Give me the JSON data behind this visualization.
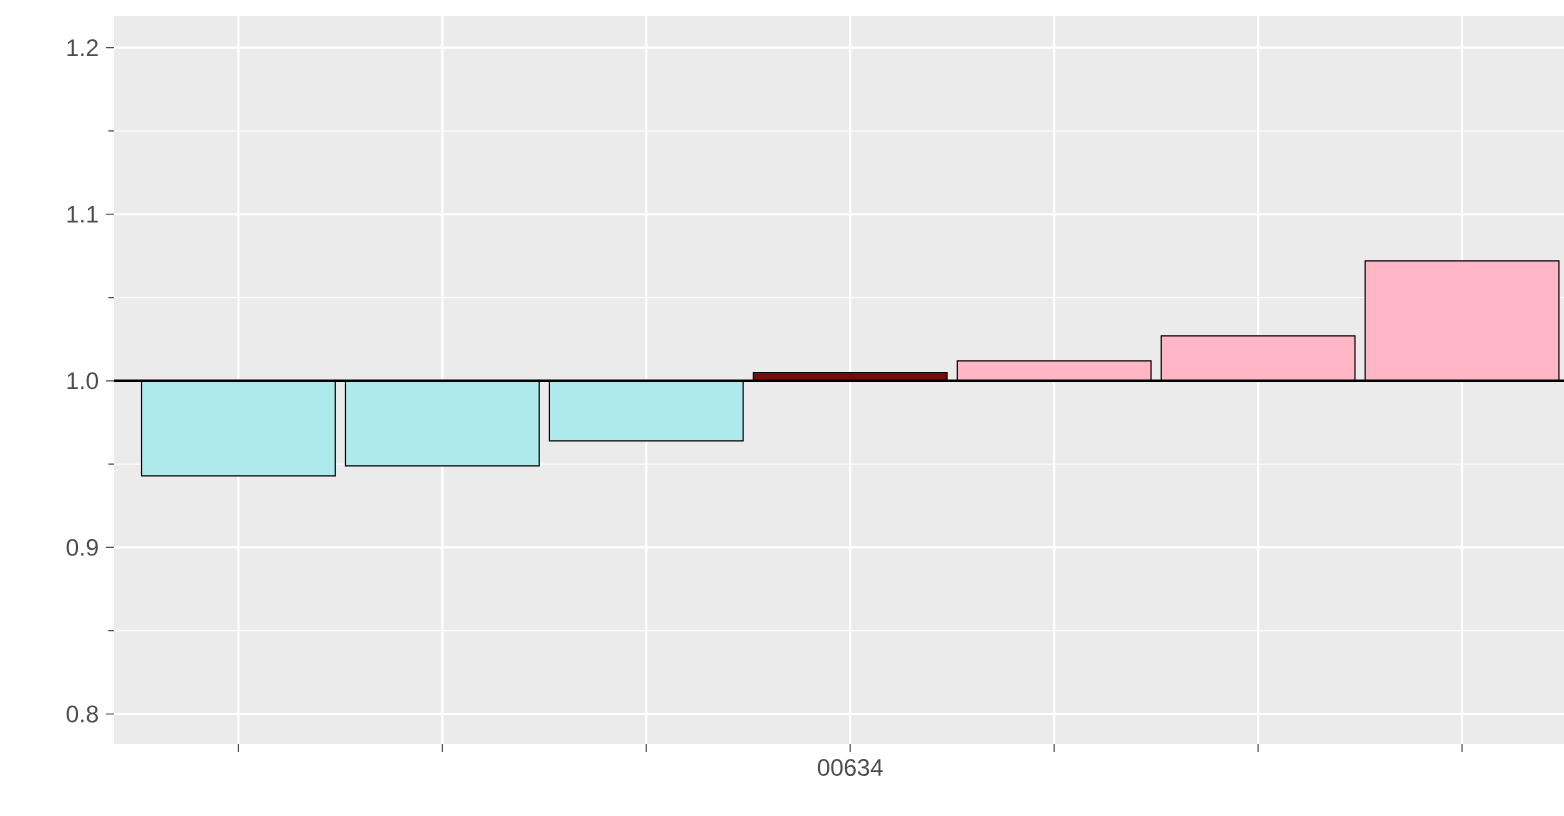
{
  "chart_data": {
    "type": "bar",
    "categories": [
      null,
      null,
      null,
      "00634",
      null,
      null,
      null
    ],
    "base": [
      1,
      1,
      1,
      1,
      1,
      1,
      1
    ],
    "values": [
      -0.057,
      -0.051,
      -0.036,
      0.005,
      0.012,
      0.027,
      0.072
    ],
    "colors": [
      "#aeeaeb",
      "#aeeaeb",
      "#aeeaeb",
      "#7a0a0a",
      "#ffb6c6",
      "#ffb6c6",
      "#ffb6c6"
    ],
    "ylim": [
      0.782,
      1.219
    ],
    "yticks": [
      0.8,
      0.9,
      {
        "value": 1,
        "label": "1.0"
      },
      1.1,
      1.2
    ],
    "ref_lines": [
      {
        "axis": "y",
        "value": 1,
        "color": "#000000"
      }
    ],
    "grid": true
  }
}
